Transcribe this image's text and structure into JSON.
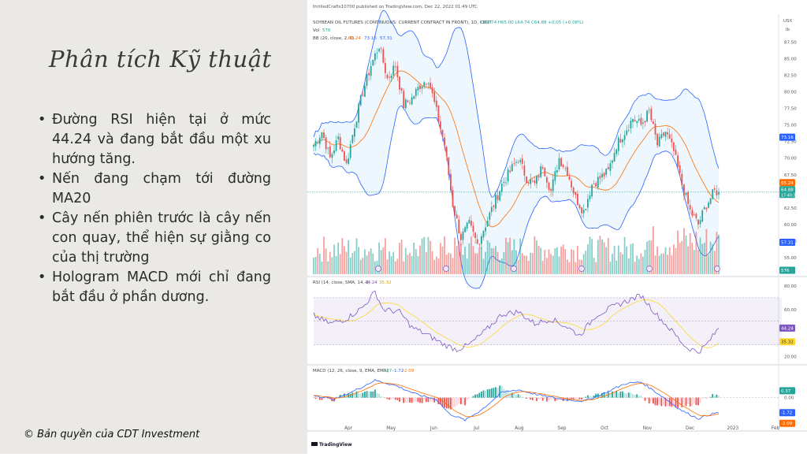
{
  "slide": {
    "title": "Phân tích Kỹ thuật",
    "bullets": [
      "Đường RSI hiện tại ở mức 44.24 và đang bắt đầu một xu hướng tăng.",
      "Nến đang chạm tới đường MA20",
      "Cây nến phiên trước là cây nến con quay, thể hiện sự giằng co của thị trường",
      "Hologram MACD mới chỉ đang bắt đầu ở phần dương."
    ],
    "copyright": "© Bản quyền của CDT Investment"
  },
  "chart_header": {
    "published": "thrilledCrafts10700 published on TradingView.com, Dec 22, 2022 01:49 UTC",
    "symbol": "SOYBEAN OIL FUTURES (CONTINUOUS: CURRENT CONTRACT IN FRONT), 1D, CBOT",
    "ohlc": "O64.74 H65.00 L64.74 C64.88 +0.05 (+0.08%)",
    "vol_label": "Vol",
    "vol_value": "576",
    "bb_label": "BB (20, close, 2, 0)",
    "bb_values": [
      "65.24",
      "73.16",
      "57.31"
    ],
    "currency": "USX",
    "unit": "lb",
    "rsi_label": "RSI (14, close, SMA, 14, 2)",
    "rsi_values": [
      "44.24",
      "35.32"
    ],
    "macd_label": "MACD (12, 26, close, 9, EMA, EMA)",
    "macd_values": [
      "0.37",
      "-1.72",
      "-2.09"
    ],
    "footer": "TradingView"
  },
  "colors": {
    "up": "#26a69a",
    "down": "#ef5350",
    "bb_band": "#2962ff",
    "bb_basis": "#ff6d00",
    "rsi_line": "#7e57c2",
    "rsi_sma": "#fdd835",
    "macd_line": "#2962ff",
    "signal_line": "#ff6d00"
  },
  "chart_data": {
    "type": "candlestick",
    "x_labels": [
      "Apr",
      "May",
      "Jun",
      "Jul",
      "Aug",
      "Sep",
      "Oct",
      "Nov",
      "Dec",
      "2023",
      "Feb"
    ],
    "price_axis": {
      "ticks": [
        "87.50",
        "85.00",
        "82.50",
        "80.00",
        "77.50",
        "75.00",
        "72.50",
        "70.00",
        "67.50",
        "62.50",
        "60.00",
        "57.50",
        "55.00"
      ],
      "ylim": [
        52.5,
        88.5
      ]
    },
    "price_badges": [
      {
        "value": "73.16",
        "color": "#2962ff"
      },
      {
        "value": "65.24",
        "color": "#ff6d00"
      },
      {
        "value": "64.88",
        "sub": "17:40:32",
        "color": "#26a69a"
      },
      {
        "value": "57.31",
        "color": "#2962ff"
      },
      {
        "value": "576",
        "color": "#26a69a"
      }
    ],
    "last_close": 64.88,
    "price_anchors": [
      [
        0,
        72
      ],
      [
        4,
        74
      ],
      [
        8,
        70
      ],
      [
        12,
        73
      ],
      [
        16,
        69
      ],
      [
        20,
        75
      ],
      [
        24,
        80
      ],
      [
        28,
        84
      ],
      [
        32,
        87
      ],
      [
        36,
        82
      ],
      [
        40,
        84
      ],
      [
        44,
        78
      ],
      [
        48,
        79
      ],
      [
        52,
        81
      ],
      [
        56,
        82
      ],
      [
        60,
        77
      ],
      [
        64,
        72
      ],
      [
        68,
        63
      ],
      [
        72,
        58
      ],
      [
        76,
        60
      ],
      [
        80,
        57
      ],
      [
        84,
        60
      ],
      [
        88,
        63
      ],
      [
        92,
        66
      ],
      [
        96,
        68
      ],
      [
        100,
        70
      ],
      [
        104,
        67
      ],
      [
        108,
        66
      ],
      [
        112,
        69
      ],
      [
        116,
        65
      ],
      [
        120,
        70
      ],
      [
        124,
        68
      ],
      [
        128,
        64
      ],
      [
        132,
        62
      ],
      [
        136,
        66
      ],
      [
        140,
        67
      ],
      [
        144,
        68
      ],
      [
        148,
        72
      ],
      [
        152,
        74
      ],
      [
        156,
        76
      ],
      [
        160,
        75
      ],
      [
        164,
        77
      ],
      [
        168,
        72
      ],
      [
        172,
        74
      ],
      [
        176,
        71
      ],
      [
        180,
        66
      ],
      [
        184,
        62
      ],
      [
        188,
        60
      ],
      [
        192,
        63
      ],
      [
        196,
        65
      ],
      [
        198,
        64.88
      ]
    ],
    "rsi_axis": {
      "ticks": [
        "80.00",
        "60.00",
        "20.00"
      ],
      "ylim": [
        15,
        82
      ],
      "band": [
        30,
        70
      ]
    },
    "rsi_anchors": [
      [
        0,
        55
      ],
      [
        8,
        48
      ],
      [
        16,
        52
      ],
      [
        24,
        62
      ],
      [
        30,
        75
      ],
      [
        34,
        60
      ],
      [
        42,
        58
      ],
      [
        48,
        45
      ],
      [
        56,
        38
      ],
      [
        64,
        30
      ],
      [
        70,
        26
      ],
      [
        76,
        30
      ],
      [
        84,
        42
      ],
      [
        92,
        56
      ],
      [
        100,
        58
      ],
      [
        108,
        48
      ],
      [
        116,
        52
      ],
      [
        124,
        45
      ],
      [
        130,
        38
      ],
      [
        138,
        55
      ],
      [
        146,
        62
      ],
      [
        154,
        68
      ],
      [
        160,
        72
      ],
      [
        168,
        55
      ],
      [
        176,
        40
      ],
      [
        182,
        28
      ],
      [
        188,
        24
      ],
      [
        192,
        30
      ],
      [
        198,
        44.24
      ]
    ],
    "macd_axis": {
      "ticks": [
        "0.00"
      ],
      "ylim": [
        -3.2,
        2.6
      ]
    },
    "macd_anchors": [
      [
        0,
        0.3
      ],
      [
        10,
        -0.2
      ],
      [
        20,
        0.8
      ],
      [
        30,
        2.0
      ],
      [
        40,
        1.4
      ],
      [
        50,
        0.4
      ],
      [
        60,
        -0.2
      ],
      [
        66,
        -1.8
      ],
      [
        74,
        -2.6
      ],
      [
        82,
        -1.4
      ],
      [
        92,
        0.6
      ],
      [
        100,
        0.9
      ],
      [
        112,
        0.2
      ],
      [
        122,
        -0.2
      ],
      [
        132,
        -0.4
      ],
      [
        142,
        0.5
      ],
      [
        152,
        1.6
      ],
      [
        160,
        1.8
      ],
      [
        170,
        0.2
      ],
      [
        180,
        -1.5
      ],
      [
        188,
        -2.4
      ],
      [
        194,
        -1.9
      ],
      [
        198,
        -1.72
      ]
    ],
    "volume_markers": 6
  }
}
